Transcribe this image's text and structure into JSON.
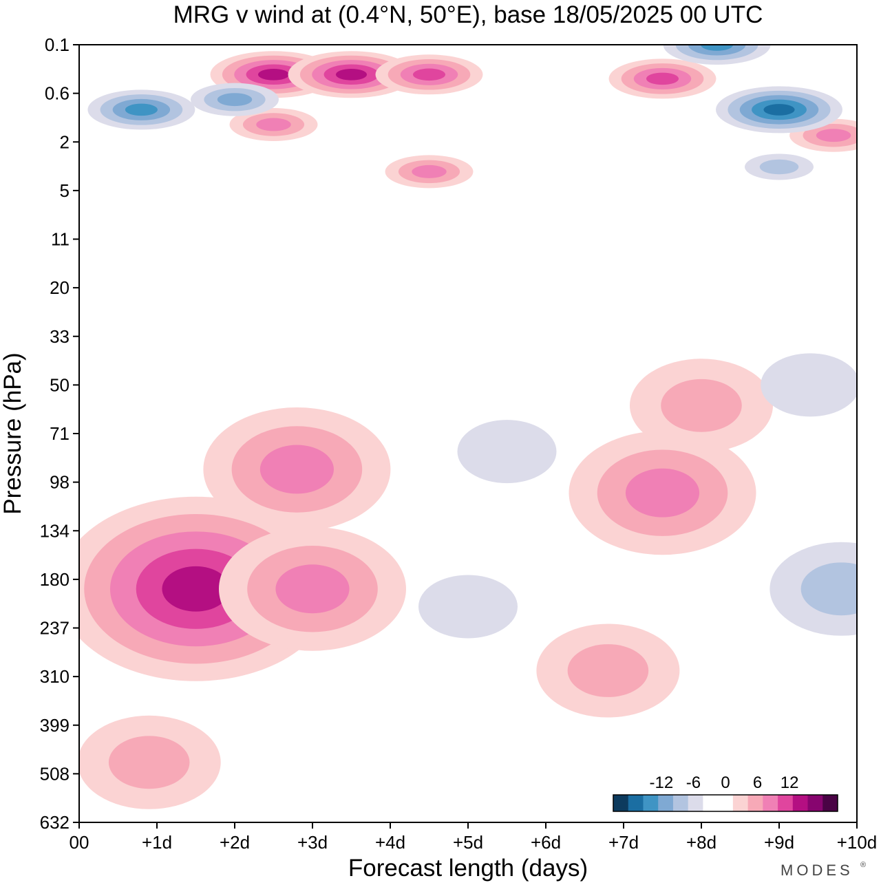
{
  "chart_data": {
    "type": "heatmap",
    "title": "MRG v wind at (0.4°N, 50°E),  base 18/05/2025  00 UTC",
    "xlabel": "Forecast length (days)",
    "ylabel": "Pressure (hPa)",
    "x_ticks": [
      "00",
      "+1d",
      "+2d",
      "+3d",
      "+4d",
      "+5d",
      "+6d",
      "+7d",
      "+8d",
      "+9d",
      "+10d"
    ],
    "xlim": [
      0,
      10
    ],
    "y_ticks": [
      "0.1",
      "0.6",
      "2",
      "5",
      "11",
      "20",
      "33",
      "50",
      "71",
      "98",
      "134",
      "180",
      "237",
      "310",
      "399",
      "508",
      "632"
    ],
    "ylim": [
      632,
      0.1
    ],
    "y_scale": "log",
    "colorbar": {
      "labels": [
        "-12",
        "-6",
        "0",
        "6",
        "12"
      ],
      "levels": [
        -15,
        -12,
        -9,
        -6,
        -3,
        0,
        3,
        6,
        9,
        12,
        15
      ],
      "colors": [
        "#0d3b5e",
        "#1b6ea2",
        "#3f94c4",
        "#7fa9d3",
        "#b2c4e0",
        "#dcdcea",
        "#ffffff",
        "#ffffff",
        "#fbd3d3",
        "#f7a9b7",
        "#f080b5",
        "#e0459e",
        "#b40f82",
        "#87056f",
        "#4a0345"
      ],
      "placement": "bottom-right"
    },
    "regions": [
      {
        "sign": "positive",
        "max_value": 15,
        "day": 1.5,
        "hPa": 190,
        "desc": "maximum"
      },
      {
        "sign": "positive",
        "max_value": 9,
        "day": 3.0,
        "hPa": 190
      },
      {
        "sign": "positive",
        "max_value": 9,
        "day": 2.8,
        "hPa": 90
      },
      {
        "sign": "positive",
        "max_value": 6,
        "day": 0.9,
        "hPa": 480
      },
      {
        "sign": "positive",
        "max_value": 6,
        "day": 6.8,
        "hPa": 300
      },
      {
        "sign": "positive",
        "max_value": 9,
        "day": 7.5,
        "hPa": 105
      },
      {
        "sign": "positive",
        "max_value": 6,
        "day": 8.0,
        "hPa": 58
      },
      {
        "sign": "positive",
        "max_value": 15,
        "day": 2.5,
        "hPa": 0.3
      },
      {
        "sign": "positive",
        "max_value": 15,
        "day": 3.5,
        "hPa": 0.3
      },
      {
        "sign": "positive",
        "max_value": 12,
        "day": 4.5,
        "hPa": 0.3
      },
      {
        "sign": "positive",
        "max_value": 12,
        "day": 7.5,
        "hPa": 0.35
      },
      {
        "sign": "positive",
        "max_value": 9,
        "day": 2.5,
        "hPa": 1.3
      },
      {
        "sign": "positive",
        "max_value": 9,
        "day": 4.5,
        "hPa": 3.5
      },
      {
        "sign": "positive",
        "max_value": 9,
        "day": 9.7,
        "hPa": 1.7
      },
      {
        "sign": "negative",
        "min_value": -15,
        "day": 9.0,
        "hPa": 0.9
      },
      {
        "sign": "negative",
        "min_value": -12,
        "day": 0.8,
        "hPa": 0.9
      },
      {
        "sign": "negative",
        "min_value": -9,
        "day": 2.0,
        "hPa": 0.7
      },
      {
        "sign": "negative",
        "min_value": -12,
        "day": 8.2,
        "hPa": 0.1
      },
      {
        "sign": "negative",
        "min_value": -6,
        "day": 9.0,
        "hPa": 3.2
      },
      {
        "sign": "negative",
        "min_value": -6,
        "day": 9.8,
        "hPa": 190
      },
      {
        "sign": "negative",
        "min_value": -3,
        "day": 5.5,
        "hPa": 80
      },
      {
        "sign": "negative",
        "min_value": -3,
        "day": 5.0,
        "hPa": 210
      },
      {
        "sign": "negative",
        "min_value": -3,
        "day": 9.4,
        "hPa": 50
      }
    ]
  },
  "brand": {
    "name": "MODES",
    "mark": "®"
  }
}
